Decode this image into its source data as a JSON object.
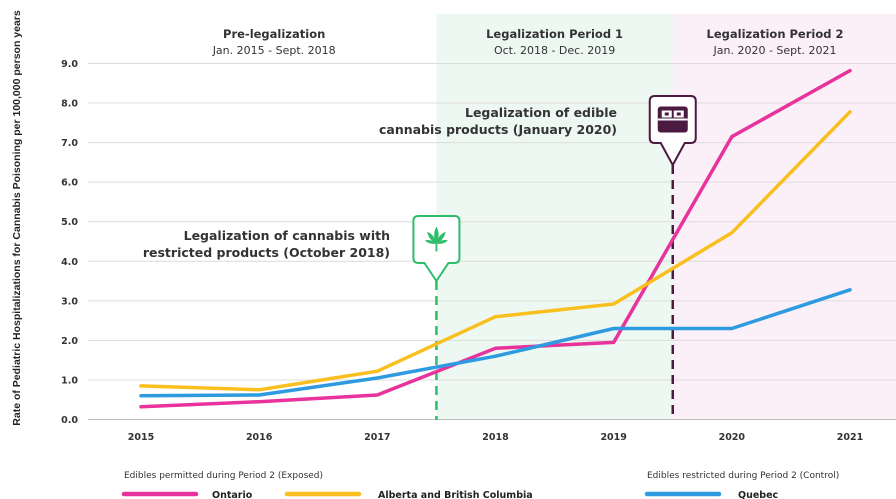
{
  "chart_data": {
    "type": "line",
    "ylabel": "Rate of Pediatric Hospitalizations for Cannabis Poisoning per 100,000 person years",
    "xlabel": "",
    "x_ticks": [
      "2015",
      "2016",
      "2017",
      "2018",
      "2019",
      "2020",
      "2021"
    ],
    "y_ticks": [
      "0.0",
      "1.0",
      "2.0",
      "3.0",
      "4.0",
      "5.0",
      "6.0",
      "7.0",
      "8.0",
      "9.0"
    ],
    "ylim": [
      0,
      9.5
    ],
    "xlim": [
      2014.5,
      2021.4
    ],
    "grid": true,
    "periods": [
      {
        "title": "Pre-legalization",
        "subtitle": "Jan. 2015 - Sept. 2018",
        "start": 2014.5,
        "end": 2017.5,
        "color": "#ffffff"
      },
      {
        "title": "Legalization Period 1",
        "subtitle": "Oct. 2018 - Dec. 2019",
        "start": 2017.5,
        "end": 2019.5,
        "color": "#eef8f2"
      },
      {
        "title": "Legalization Period 2",
        "subtitle": "Jan. 2020 - Sept. 2021",
        "start": 2019.5,
        "end": 2021.4,
        "color": "#fbf0f8"
      }
    ],
    "series": [
      {
        "name": "Ontario",
        "color": "#e8329c",
        "points": [
          [
            2015,
            0.32
          ],
          [
            2016,
            0.45
          ],
          [
            2017,
            0.62
          ],
          [
            2018,
            1.8
          ],
          [
            2019,
            1.95
          ],
          [
            2020,
            7.15
          ],
          [
            2021,
            8.82
          ]
        ]
      },
      {
        "name": "Alberta and British Columbia",
        "color": "#f9bf1e",
        "points": [
          [
            2015,
            0.85
          ],
          [
            2016,
            0.75
          ],
          [
            2017,
            1.22
          ],
          [
            2018,
            2.6
          ],
          [
            2019,
            2.92
          ],
          [
            2020,
            4.72
          ],
          [
            2021,
            7.78
          ]
        ]
      },
      {
        "name": "Quebec",
        "color": "#2e9be0",
        "points": [
          [
            2015,
            0.6
          ],
          [
            2016,
            0.62
          ],
          [
            2017,
            1.05
          ],
          [
            2018,
            1.6
          ],
          [
            2019,
            2.3
          ],
          [
            2020,
            2.3
          ],
          [
            2021,
            3.28
          ]
        ]
      }
    ],
    "events": [
      {
        "label_lines": [
          "Legalization of cannabis with",
          "restricted products (October 2018)"
        ],
        "x": 2017.5,
        "color": "#2ebd6b",
        "icon": "cannabis-leaf-icon"
      },
      {
        "label_lines": [
          "Legalization of edible",
          "cannabis products (January 2020)"
        ],
        "x": 2019.5,
        "color": "#4a1a40",
        "icon": "edible-package-icon"
      }
    ],
    "legend": {
      "placement": "bottom",
      "groups": [
        {
          "title": "Edibles permitted during Period 2 (Exposed)",
          "series": [
            "Ontario",
            "Alberta and British Columbia"
          ]
        },
        {
          "title": "Edibles restricted during Period 2 (Control)",
          "series": [
            "Quebec"
          ]
        }
      ]
    }
  }
}
